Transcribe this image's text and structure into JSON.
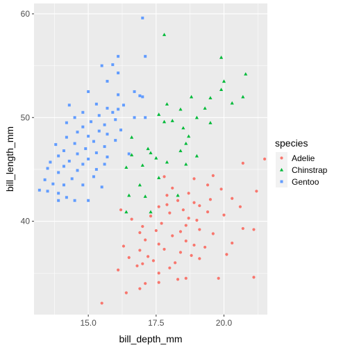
{
  "chart_data": {
    "type": "scatter",
    "title": "",
    "xlabel": "bill_depth_mm",
    "ylabel": "bill_length_mm",
    "xlim": [
      13.0,
      21.6
    ],
    "ylim": [
      31.0,
      61.0
    ],
    "x_ticks": [
      15.0,
      17.5,
      20.0
    ],
    "x_tick_labels": [
      "15.0",
      "17.5",
      "20.0"
    ],
    "y_ticks": [
      40,
      50,
      60
    ],
    "y_tick_labels": [
      "40",
      "50",
      "60"
    ],
    "grid": true,
    "legend": {
      "title": "species",
      "placement": "right"
    },
    "series": [
      {
        "name": "Adelie",
        "color": "#F8766D",
        "shape": "circle",
        "points": [
          [
            15.5,
            32.1
          ],
          [
            16.4,
            33.1
          ],
          [
            16.9,
            33.5
          ],
          [
            17.1,
            34.0
          ],
          [
            17.6,
            34.1
          ],
          [
            18.3,
            34.4
          ],
          [
            18.6,
            34.5
          ],
          [
            19.8,
            34.5
          ],
          [
            21.1,
            34.6
          ],
          [
            17.6,
            35.0
          ],
          [
            16.1,
            35.3
          ],
          [
            18.0,
            35.5
          ],
          [
            16.8,
            35.7
          ],
          [
            17.0,
            35.9
          ],
          [
            18.2,
            36.0
          ],
          [
            17.4,
            36.2
          ],
          [
            19.1,
            36.4
          ],
          [
            16.5,
            36.5
          ],
          [
            17.2,
            36.6
          ],
          [
            18.8,
            36.7
          ],
          [
            20.1,
            36.8
          ],
          [
            18.4,
            37.0
          ],
          [
            16.9,
            37.2
          ],
          [
            17.8,
            37.3
          ],
          [
            19.3,
            37.5
          ],
          [
            16.3,
            37.6
          ],
          [
            18.9,
            37.7
          ],
          [
            17.6,
            37.8
          ],
          [
            20.3,
            37.9
          ],
          [
            18.6,
            38.1
          ],
          [
            17.1,
            38.2
          ],
          [
            18.1,
            38.6
          ],
          [
            19.6,
            38.8
          ],
          [
            16.9,
            38.9
          ],
          [
            18.4,
            39.0
          ],
          [
            17.5,
            39.1
          ],
          [
            19.1,
            39.2
          ],
          [
            20.7,
            39.3
          ],
          [
            17.0,
            39.5
          ],
          [
            18.6,
            39.6
          ],
          [
            21.1,
            39.2
          ],
          [
            17.7,
            39.8
          ],
          [
            19.0,
            40.1
          ],
          [
            16.6,
            40.2
          ],
          [
            18.7,
            40.3
          ],
          [
            17.3,
            40.5
          ],
          [
            20.0,
            40.6
          ],
          [
            18.0,
            40.8
          ],
          [
            19.4,
            40.9
          ],
          [
            16.2,
            41.1
          ],
          [
            18.5,
            41.1
          ],
          [
            17.6,
            41.4
          ],
          [
            19.1,
            41.5
          ],
          [
            20.6,
            41.4
          ],
          [
            17.9,
            41.6
          ],
          [
            18.9,
            41.8
          ],
          [
            18.3,
            42.0
          ],
          [
            19.5,
            42.1
          ],
          [
            20.3,
            42.2
          ],
          [
            17.9,
            42.5
          ],
          [
            18.7,
            42.7
          ],
          [
            21.2,
            42.9
          ],
          [
            19.9,
            43.1
          ],
          [
            18.1,
            43.2
          ],
          [
            19.4,
            43.5
          ],
          [
            18.9,
            44.1
          ],
          [
            17.8,
            44.3
          ],
          [
            19.6,
            44.4
          ],
          [
            20.7,
            45.6
          ],
          [
            21.5,
            46.0
          ]
        ]
      },
      {
        "name": "Chinstrap",
        "color": "#00BA38",
        "shape": "triangle",
        "points": [
          [
            16.4,
            40.9
          ],
          [
            17.3,
            40.9
          ],
          [
            16.5,
            42.5
          ],
          [
            17.1,
            42.4
          ],
          [
            16.9,
            43.5
          ],
          [
            18.3,
            42.5
          ],
          [
            17.6,
            44.2
          ],
          [
            16.4,
            45.2
          ],
          [
            17.0,
            45.4
          ],
          [
            17.9,
            45.7
          ],
          [
            18.6,
            45.5
          ],
          [
            17.5,
            46.1
          ],
          [
            19.0,
            46.3
          ],
          [
            16.6,
            46.4
          ],
          [
            17.3,
            46.6
          ],
          [
            18.4,
            46.8
          ],
          [
            17.2,
            47.0
          ],
          [
            18.6,
            47.5
          ],
          [
            16.6,
            48.1
          ],
          [
            18.7,
            48.2
          ],
          [
            18.5,
            49.0
          ],
          [
            17.8,
            49.6
          ],
          [
            18.1,
            49.7
          ],
          [
            19.5,
            49.5
          ],
          [
            19.0,
            50.0
          ],
          [
            17.6,
            50.3
          ],
          [
            18.4,
            50.8
          ],
          [
            19.3,
            50.9
          ],
          [
            17.9,
            51.3
          ],
          [
            20.3,
            51.4
          ],
          [
            19.5,
            51.9
          ],
          [
            18.8,
            52.0
          ],
          [
            19.9,
            52.7
          ],
          [
            20.7,
            52.0
          ],
          [
            20.0,
            53.5
          ],
          [
            20.8,
            54.2
          ],
          [
            19.9,
            55.8
          ],
          [
            17.8,
            58.0
          ]
        ]
      },
      {
        "name": "Gentoo",
        "color": "#619CFF",
        "shape": "square",
        "points": [
          [
            13.2,
            43.0
          ],
          [
            13.5,
            42.9
          ],
          [
            13.9,
            42.7
          ],
          [
            14.2,
            42.3
          ],
          [
            13.9,
            42.0
          ],
          [
            14.5,
            42.0
          ],
          [
            15.0,
            42.0
          ],
          [
            13.7,
            43.6
          ],
          [
            14.1,
            43.5
          ],
          [
            14.8,
            43.5
          ],
          [
            15.5,
            43.3
          ],
          [
            13.4,
            44.0
          ],
          [
            14.4,
            44.1
          ],
          [
            15.2,
            44.3
          ],
          [
            13.9,
            44.7
          ],
          [
            14.6,
            44.9
          ],
          [
            15.3,
            45.0
          ],
          [
            13.5,
            45.1
          ],
          [
            14.1,
            45.3
          ],
          [
            14.8,
            45.5
          ],
          [
            15.6,
            45.5
          ],
          [
            13.6,
            45.7
          ],
          [
            14.3,
            45.8
          ],
          [
            15.0,
            46.0
          ],
          [
            15.7,
            46.2
          ],
          [
            13.9,
            46.3
          ],
          [
            14.6,
            46.5
          ],
          [
            15.3,
            46.6
          ],
          [
            14.1,
            46.8
          ],
          [
            14.9,
            47.0
          ],
          [
            15.6,
            47.2
          ],
          [
            13.8,
            47.4
          ],
          [
            14.5,
            47.5
          ],
          [
            15.2,
            47.7
          ],
          [
            16.0,
            47.8
          ],
          [
            14.2,
            48.1
          ],
          [
            15.0,
            48.2
          ],
          [
            15.7,
            48.4
          ],
          [
            14.6,
            48.6
          ],
          [
            15.4,
            48.7
          ],
          [
            16.2,
            48.8
          ],
          [
            14.8,
            49.1
          ],
          [
            15.6,
            49.3
          ],
          [
            14.2,
            49.5
          ],
          [
            15.1,
            49.6
          ],
          [
            16.0,
            49.8
          ],
          [
            14.5,
            50.0
          ],
          [
            15.4,
            50.2
          ],
          [
            15.9,
            50.5
          ],
          [
            14.8,
            50.5
          ],
          [
            14.3,
            51.2
          ],
          [
            15.7,
            50.9
          ],
          [
            15.3,
            51.3
          ],
          [
            16.1,
            50.8
          ],
          [
            16.3,
            51.2
          ],
          [
            16.7,
            50.0
          ],
          [
            16.1,
            52.2
          ],
          [
            15.0,
            52.5
          ],
          [
            16.7,
            52.5
          ],
          [
            15.7,
            53.5
          ],
          [
            16.1,
            54.3
          ],
          [
            15.5,
            55.0
          ],
          [
            15.9,
            55.1
          ],
          [
            16.1,
            55.9
          ],
          [
            17.1,
            55.9
          ],
          [
            17.0,
            59.6
          ],
          [
            17.0,
            52.0
          ],
          [
            16.9,
            52.1
          ],
          [
            17.1,
            50.0
          ],
          [
            16.5,
            46.5
          ]
        ]
      }
    ]
  }
}
